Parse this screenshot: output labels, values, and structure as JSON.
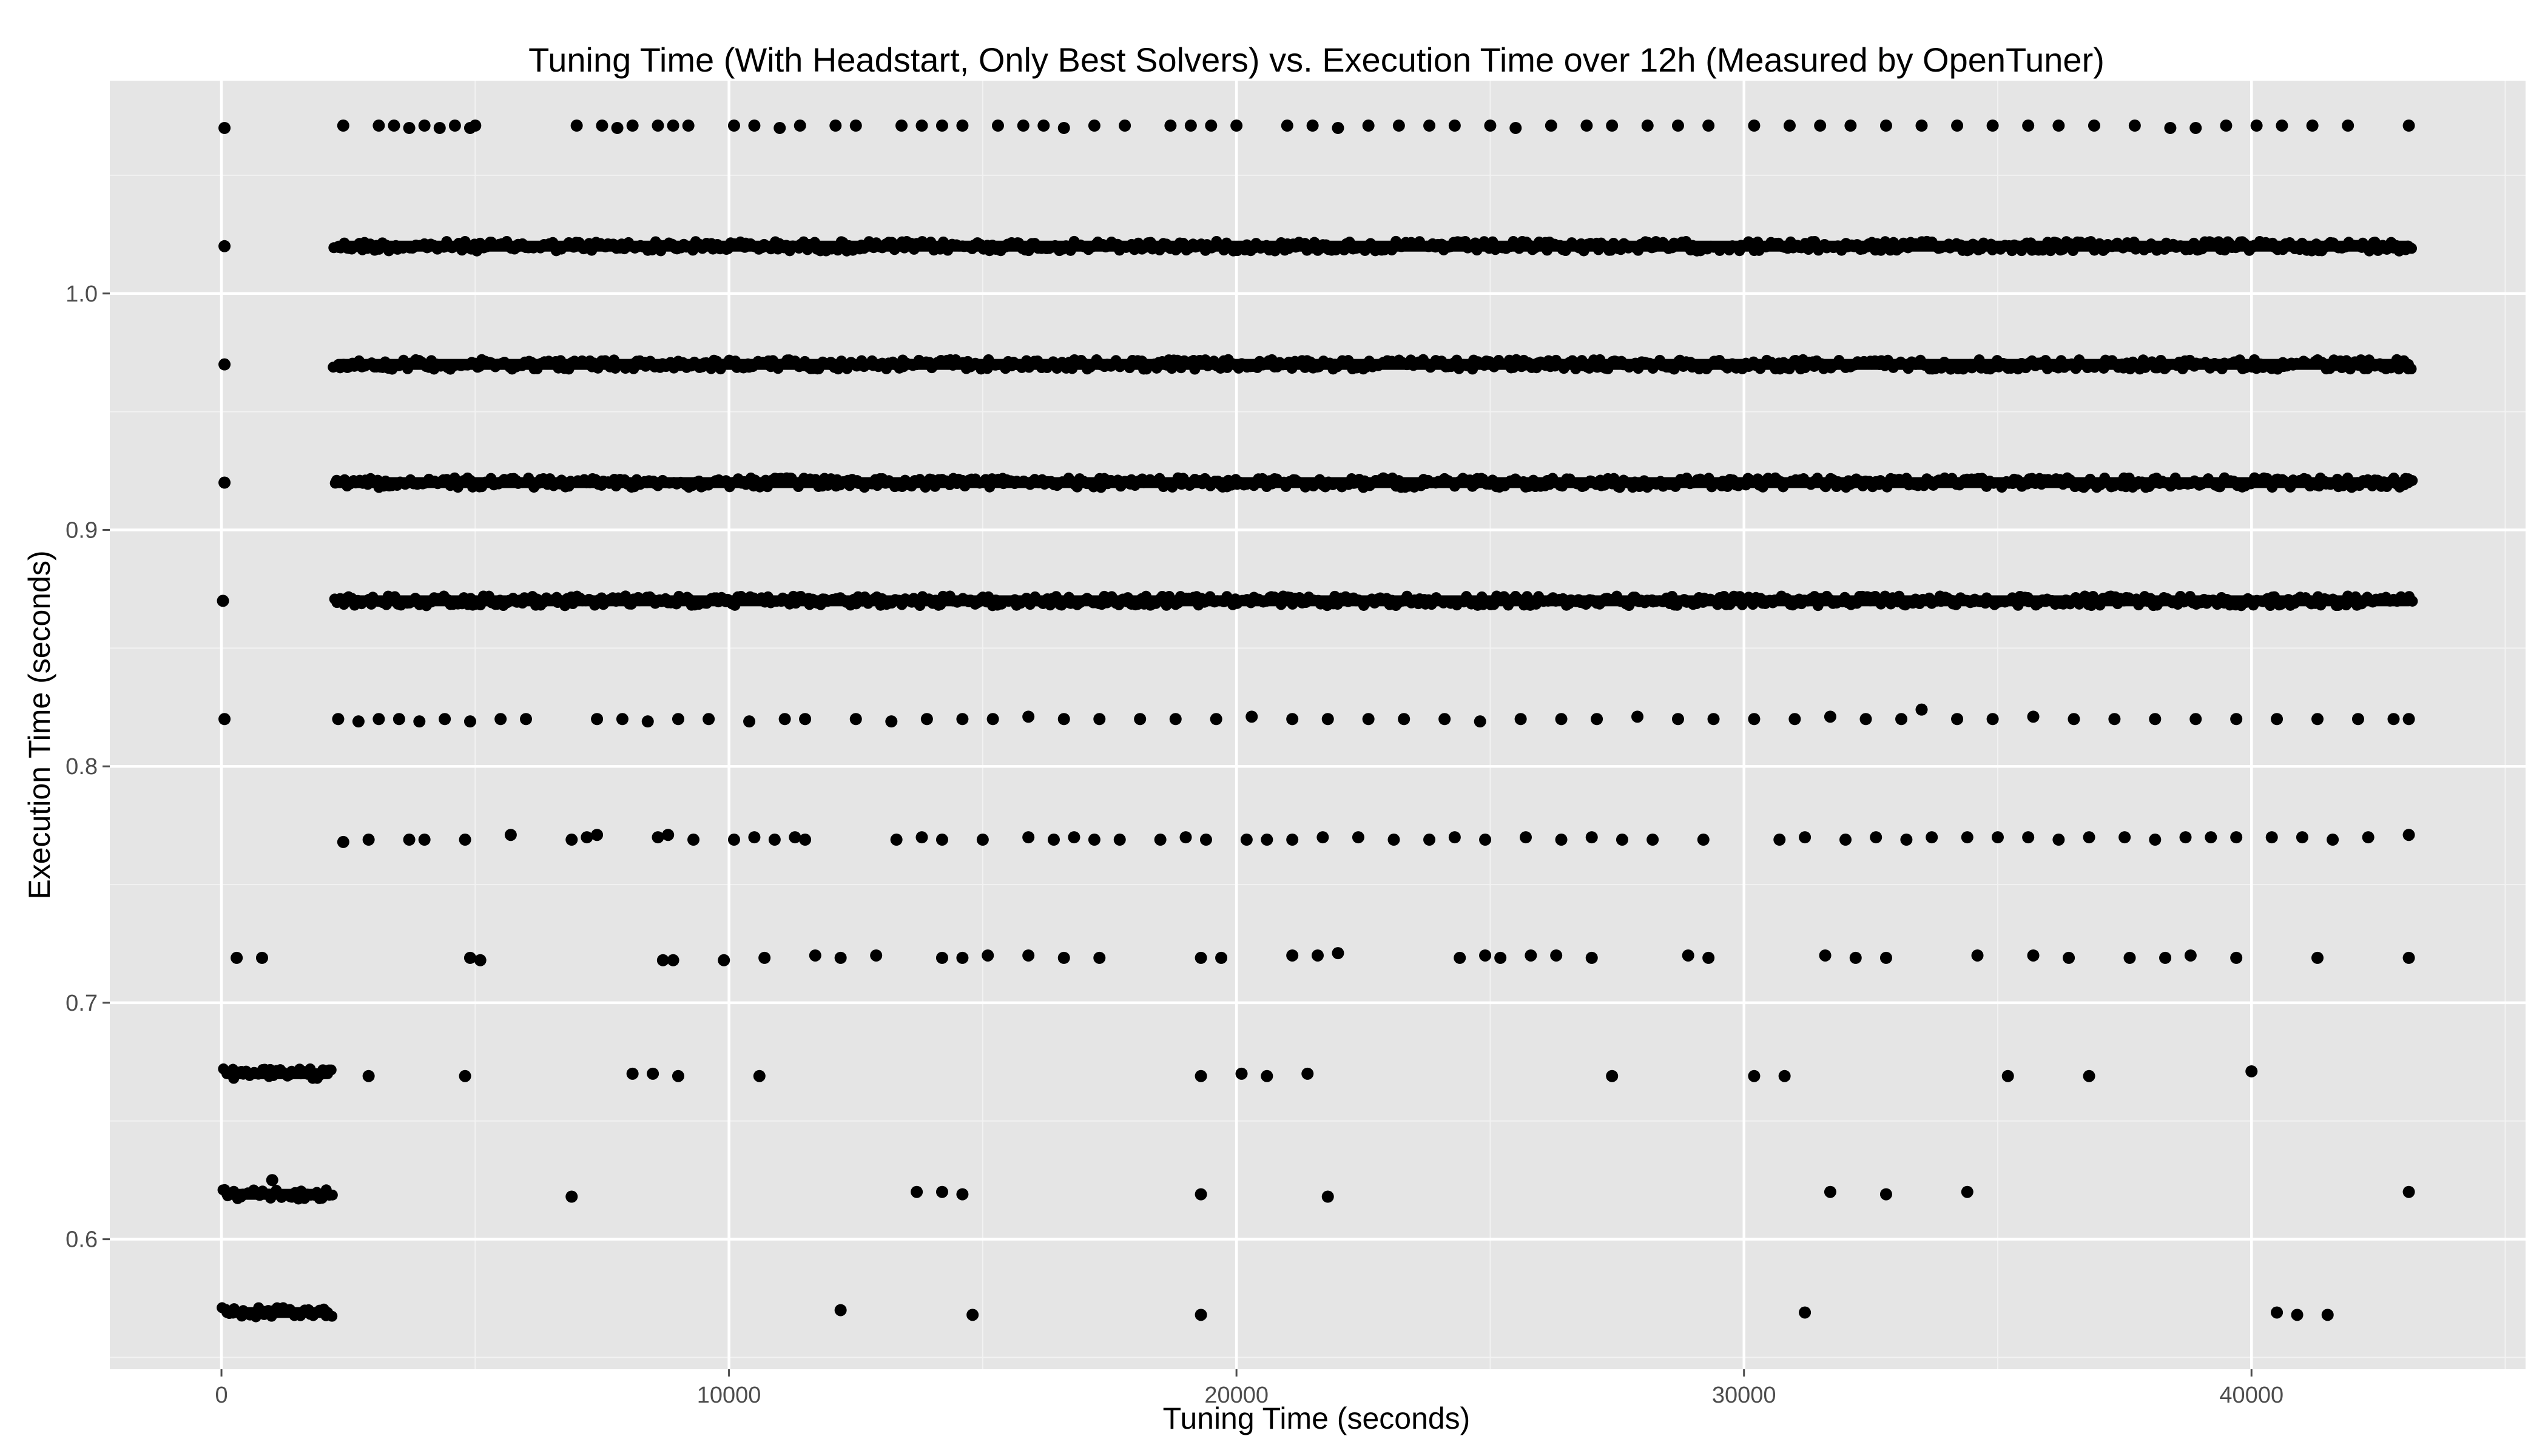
{
  "chart_data": {
    "type": "scatter",
    "title": "Tuning Time (With Headstart, Only Best Solvers) vs. Execution Time over 12h (Measured by OpenTuner)",
    "xlabel": "Tuning Time (seconds)",
    "ylabel": "Execution Time (seconds)",
    "xlim": [
      -2200,
      45400
    ],
    "ylim": [
      0.545,
      1.09
    ],
    "x_ticks": [
      0,
      10000,
      20000,
      30000,
      40000
    ],
    "x_tick_labels": [
      "0",
      "10000",
      "20000",
      "30000",
      "40000"
    ],
    "y_ticks": [
      0.6,
      0.7,
      0.8,
      0.9,
      1.0
    ],
    "y_tick_labels": [
      "0.6",
      "0.7",
      "0.8",
      "0.9",
      "1.0"
    ],
    "grid": true,
    "background": "#e5e5e5",
    "point_color": "#000000",
    "dense_bands": [
      {
        "y": 1.02,
        "x_start": 2200,
        "x_end": 43200
      },
      {
        "y": 0.97,
        "x_start": 2200,
        "x_end": 43200
      },
      {
        "y": 0.92,
        "x_start": 2200,
        "x_end": 43200
      },
      {
        "y": 0.87,
        "x_start": 2200,
        "x_end": 43200
      },
      {
        "y": 0.67,
        "x_start": 0,
        "x_end": 2200
      },
      {
        "y": 0.619,
        "x_start": 0,
        "x_end": 2200
      },
      {
        "y": 0.569,
        "x_start": 0,
        "x_end": 2200
      }
    ],
    "points": [
      {
        "x": 60,
        "y": 1.07
      },
      {
        "x": 60,
        "y": 1.02
      },
      {
        "x": 60,
        "y": 0.97
      },
      {
        "x": 60,
        "y": 0.92
      },
      {
        "x": 30,
        "y": 0.87
      },
      {
        "x": 60,
        "y": 0.82
      },
      {
        "x": 2400,
        "y": 1.071
      },
      {
        "x": 3100,
        "y": 1.071
      },
      {
        "x": 3400,
        "y": 1.071
      },
      {
        "x": 3700,
        "y": 1.07
      },
      {
        "x": 4000,
        "y": 1.071
      },
      {
        "x": 4300,
        "y": 1.07
      },
      {
        "x": 4600,
        "y": 1.071
      },
      {
        "x": 4900,
        "y": 1.07
      },
      {
        "x": 5000,
        "y": 1.071
      },
      {
        "x": 7000,
        "y": 1.071
      },
      {
        "x": 7500,
        "y": 1.071
      },
      {
        "x": 7800,
        "y": 1.07
      },
      {
        "x": 8100,
        "y": 1.071
      },
      {
        "x": 8600,
        "y": 1.071
      },
      {
        "x": 8900,
        "y": 1.071
      },
      {
        "x": 9200,
        "y": 1.071
      },
      {
        "x": 10100,
        "y": 1.071
      },
      {
        "x": 10500,
        "y": 1.071
      },
      {
        "x": 11000,
        "y": 1.07
      },
      {
        "x": 11400,
        "y": 1.071
      },
      {
        "x": 12100,
        "y": 1.071
      },
      {
        "x": 12500,
        "y": 1.071
      },
      {
        "x": 13400,
        "y": 1.071
      },
      {
        "x": 13800,
        "y": 1.071
      },
      {
        "x": 14200,
        "y": 1.071
      },
      {
        "x": 14600,
        "y": 1.071
      },
      {
        "x": 15300,
        "y": 1.071
      },
      {
        "x": 15800,
        "y": 1.071
      },
      {
        "x": 16200,
        "y": 1.071
      },
      {
        "x": 16600,
        "y": 1.07
      },
      {
        "x": 17200,
        "y": 1.071
      },
      {
        "x": 17800,
        "y": 1.071
      },
      {
        "x": 18700,
        "y": 1.071
      },
      {
        "x": 19100,
        "y": 1.071
      },
      {
        "x": 19500,
        "y": 1.071
      },
      {
        "x": 20000,
        "y": 1.071
      },
      {
        "x": 21000,
        "y": 1.071
      },
      {
        "x": 21500,
        "y": 1.071
      },
      {
        "x": 22000,
        "y": 1.07
      },
      {
        "x": 22600,
        "y": 1.071
      },
      {
        "x": 23200,
        "y": 1.071
      },
      {
        "x": 23800,
        "y": 1.071
      },
      {
        "x": 24300,
        "y": 1.071
      },
      {
        "x": 25000,
        "y": 1.071
      },
      {
        "x": 25500,
        "y": 1.07
      },
      {
        "x": 26200,
        "y": 1.071
      },
      {
        "x": 26900,
        "y": 1.071
      },
      {
        "x": 27400,
        "y": 1.071
      },
      {
        "x": 28100,
        "y": 1.071
      },
      {
        "x": 28700,
        "y": 1.071
      },
      {
        "x": 29300,
        "y": 1.071
      },
      {
        "x": 30200,
        "y": 1.071
      },
      {
        "x": 30900,
        "y": 1.071
      },
      {
        "x": 31500,
        "y": 1.071
      },
      {
        "x": 32100,
        "y": 1.071
      },
      {
        "x": 32800,
        "y": 1.071
      },
      {
        "x": 33500,
        "y": 1.071
      },
      {
        "x": 34200,
        "y": 1.071
      },
      {
        "x": 34900,
        "y": 1.071
      },
      {
        "x": 35600,
        "y": 1.071
      },
      {
        "x": 36200,
        "y": 1.071
      },
      {
        "x": 36900,
        "y": 1.071
      },
      {
        "x": 37700,
        "y": 1.071
      },
      {
        "x": 38400,
        "y": 1.07
      },
      {
        "x": 38900,
        "y": 1.07
      },
      {
        "x": 39500,
        "y": 1.071
      },
      {
        "x": 40100,
        "y": 1.071
      },
      {
        "x": 40600,
        "y": 1.071
      },
      {
        "x": 41200,
        "y": 1.071
      },
      {
        "x": 41900,
        "y": 1.071
      },
      {
        "x": 43100,
        "y": 1.071
      },
      {
        "x": 2300,
        "y": 0.82
      },
      {
        "x": 2700,
        "y": 0.819
      },
      {
        "x": 3100,
        "y": 0.82
      },
      {
        "x": 3500,
        "y": 0.82
      },
      {
        "x": 3900,
        "y": 0.819
      },
      {
        "x": 4400,
        "y": 0.82
      },
      {
        "x": 4900,
        "y": 0.819
      },
      {
        "x": 5500,
        "y": 0.82
      },
      {
        "x": 6000,
        "y": 0.82
      },
      {
        "x": 7400,
        "y": 0.82
      },
      {
        "x": 7900,
        "y": 0.82
      },
      {
        "x": 8400,
        "y": 0.819
      },
      {
        "x": 9000,
        "y": 0.82
      },
      {
        "x": 9600,
        "y": 0.82
      },
      {
        "x": 10400,
        "y": 0.819
      },
      {
        "x": 11100,
        "y": 0.82
      },
      {
        "x": 11500,
        "y": 0.82
      },
      {
        "x": 12500,
        "y": 0.82
      },
      {
        "x": 13200,
        "y": 0.819
      },
      {
        "x": 13900,
        "y": 0.82
      },
      {
        "x": 14600,
        "y": 0.82
      },
      {
        "x": 15200,
        "y": 0.82
      },
      {
        "x": 15900,
        "y": 0.821
      },
      {
        "x": 16600,
        "y": 0.82
      },
      {
        "x": 17300,
        "y": 0.82
      },
      {
        "x": 18100,
        "y": 0.82
      },
      {
        "x": 18800,
        "y": 0.82
      },
      {
        "x": 19600,
        "y": 0.82
      },
      {
        "x": 20300,
        "y": 0.821
      },
      {
        "x": 21100,
        "y": 0.82
      },
      {
        "x": 21800,
        "y": 0.82
      },
      {
        "x": 22600,
        "y": 0.82
      },
      {
        "x": 23300,
        "y": 0.82
      },
      {
        "x": 24100,
        "y": 0.82
      },
      {
        "x": 24800,
        "y": 0.819
      },
      {
        "x": 25600,
        "y": 0.82
      },
      {
        "x": 26400,
        "y": 0.82
      },
      {
        "x": 27100,
        "y": 0.82
      },
      {
        "x": 27900,
        "y": 0.821
      },
      {
        "x": 28700,
        "y": 0.82
      },
      {
        "x": 29400,
        "y": 0.82
      },
      {
        "x": 30200,
        "y": 0.82
      },
      {
        "x": 31000,
        "y": 0.82
      },
      {
        "x": 31700,
        "y": 0.821
      },
      {
        "x": 32400,
        "y": 0.82
      },
      {
        "x": 33100,
        "y": 0.82
      },
      {
        "x": 33500,
        "y": 0.824
      },
      {
        "x": 34200,
        "y": 0.82
      },
      {
        "x": 34900,
        "y": 0.82
      },
      {
        "x": 35700,
        "y": 0.821
      },
      {
        "x": 36500,
        "y": 0.82
      },
      {
        "x": 37300,
        "y": 0.82
      },
      {
        "x": 38100,
        "y": 0.82
      },
      {
        "x": 38900,
        "y": 0.82
      },
      {
        "x": 39700,
        "y": 0.82
      },
      {
        "x": 40500,
        "y": 0.82
      },
      {
        "x": 41300,
        "y": 0.82
      },
      {
        "x": 42100,
        "y": 0.82
      },
      {
        "x": 42800,
        "y": 0.82
      },
      {
        "x": 43100,
        "y": 0.82
      },
      {
        "x": 2400,
        "y": 0.768
      },
      {
        "x": 2900,
        "y": 0.769
      },
      {
        "x": 3700,
        "y": 0.769
      },
      {
        "x": 4000,
        "y": 0.769
      },
      {
        "x": 4800,
        "y": 0.769
      },
      {
        "x": 5700,
        "y": 0.771
      },
      {
        "x": 6900,
        "y": 0.769
      },
      {
        "x": 7200,
        "y": 0.77
      },
      {
        "x": 7400,
        "y": 0.771
      },
      {
        "x": 8600,
        "y": 0.77
      },
      {
        "x": 8800,
        "y": 0.771
      },
      {
        "x": 9300,
        "y": 0.769
      },
      {
        "x": 10100,
        "y": 0.769
      },
      {
        "x": 10500,
        "y": 0.77
      },
      {
        "x": 10900,
        "y": 0.769
      },
      {
        "x": 11300,
        "y": 0.77
      },
      {
        "x": 11500,
        "y": 0.769
      },
      {
        "x": 13300,
        "y": 0.769
      },
      {
        "x": 13800,
        "y": 0.77
      },
      {
        "x": 14200,
        "y": 0.769
      },
      {
        "x": 15000,
        "y": 0.769
      },
      {
        "x": 15900,
        "y": 0.77
      },
      {
        "x": 16400,
        "y": 0.769
      },
      {
        "x": 16800,
        "y": 0.77
      },
      {
        "x": 17200,
        "y": 0.769
      },
      {
        "x": 17700,
        "y": 0.769
      },
      {
        "x": 18500,
        "y": 0.769
      },
      {
        "x": 19000,
        "y": 0.77
      },
      {
        "x": 19400,
        "y": 0.769
      },
      {
        "x": 20200,
        "y": 0.769
      },
      {
        "x": 20600,
        "y": 0.769
      },
      {
        "x": 21100,
        "y": 0.769
      },
      {
        "x": 21700,
        "y": 0.77
      },
      {
        "x": 22400,
        "y": 0.77
      },
      {
        "x": 23100,
        "y": 0.769
      },
      {
        "x": 23800,
        "y": 0.769
      },
      {
        "x": 24300,
        "y": 0.77
      },
      {
        "x": 24900,
        "y": 0.769
      },
      {
        "x": 25700,
        "y": 0.77
      },
      {
        "x": 26400,
        "y": 0.769
      },
      {
        "x": 27000,
        "y": 0.77
      },
      {
        "x": 27600,
        "y": 0.769
      },
      {
        "x": 28200,
        "y": 0.769
      },
      {
        "x": 29200,
        "y": 0.769
      },
      {
        "x": 30700,
        "y": 0.769
      },
      {
        "x": 31200,
        "y": 0.77
      },
      {
        "x": 32000,
        "y": 0.769
      },
      {
        "x": 32600,
        "y": 0.77
      },
      {
        "x": 33200,
        "y": 0.769
      },
      {
        "x": 33700,
        "y": 0.77
      },
      {
        "x": 34400,
        "y": 0.77
      },
      {
        "x": 35000,
        "y": 0.77
      },
      {
        "x": 35600,
        "y": 0.77
      },
      {
        "x": 36200,
        "y": 0.769
      },
      {
        "x": 36800,
        "y": 0.77
      },
      {
        "x": 37500,
        "y": 0.77
      },
      {
        "x": 38100,
        "y": 0.769
      },
      {
        "x": 38700,
        "y": 0.77
      },
      {
        "x": 39200,
        "y": 0.77
      },
      {
        "x": 39700,
        "y": 0.77
      },
      {
        "x": 40400,
        "y": 0.77
      },
      {
        "x": 41000,
        "y": 0.77
      },
      {
        "x": 41600,
        "y": 0.769
      },
      {
        "x": 42300,
        "y": 0.77
      },
      {
        "x": 43100,
        "y": 0.771
      },
      {
        "x": 300,
        "y": 0.719
      },
      {
        "x": 800,
        "y": 0.719
      },
      {
        "x": 4900,
        "y": 0.719
      },
      {
        "x": 5100,
        "y": 0.718
      },
      {
        "x": 8700,
        "y": 0.718
      },
      {
        "x": 8900,
        "y": 0.718
      },
      {
        "x": 9900,
        "y": 0.718
      },
      {
        "x": 10700,
        "y": 0.719
      },
      {
        "x": 11700,
        "y": 0.72
      },
      {
        "x": 12200,
        "y": 0.719
      },
      {
        "x": 12900,
        "y": 0.72
      },
      {
        "x": 14200,
        "y": 0.719
      },
      {
        "x": 14600,
        "y": 0.719
      },
      {
        "x": 15100,
        "y": 0.72
      },
      {
        "x": 15900,
        "y": 0.72
      },
      {
        "x": 16600,
        "y": 0.719
      },
      {
        "x": 17300,
        "y": 0.719
      },
      {
        "x": 19300,
        "y": 0.719
      },
      {
        "x": 19700,
        "y": 0.719
      },
      {
        "x": 21100,
        "y": 0.72
      },
      {
        "x": 21600,
        "y": 0.72
      },
      {
        "x": 22000,
        "y": 0.721
      },
      {
        "x": 24400,
        "y": 0.719
      },
      {
        "x": 24900,
        "y": 0.72
      },
      {
        "x": 25200,
        "y": 0.719
      },
      {
        "x": 25800,
        "y": 0.72
      },
      {
        "x": 26300,
        "y": 0.72
      },
      {
        "x": 27000,
        "y": 0.719
      },
      {
        "x": 28900,
        "y": 0.72
      },
      {
        "x": 29300,
        "y": 0.719
      },
      {
        "x": 31600,
        "y": 0.72
      },
      {
        "x": 32200,
        "y": 0.719
      },
      {
        "x": 32800,
        "y": 0.719
      },
      {
        "x": 34600,
        "y": 0.72
      },
      {
        "x": 35700,
        "y": 0.72
      },
      {
        "x": 36400,
        "y": 0.719
      },
      {
        "x": 37600,
        "y": 0.719
      },
      {
        "x": 38300,
        "y": 0.719
      },
      {
        "x": 38800,
        "y": 0.72
      },
      {
        "x": 39700,
        "y": 0.719
      },
      {
        "x": 41300,
        "y": 0.719
      },
      {
        "x": 43100,
        "y": 0.719
      },
      {
        "x": 2900,
        "y": 0.669
      },
      {
        "x": 4800,
        "y": 0.669
      },
      {
        "x": 8100,
        "y": 0.67
      },
      {
        "x": 8500,
        "y": 0.67
      },
      {
        "x": 9000,
        "y": 0.669
      },
      {
        "x": 10600,
        "y": 0.669
      },
      {
        "x": 19300,
        "y": 0.669
      },
      {
        "x": 20100,
        "y": 0.67
      },
      {
        "x": 20600,
        "y": 0.669
      },
      {
        "x": 21400,
        "y": 0.67
      },
      {
        "x": 27400,
        "y": 0.669
      },
      {
        "x": 30200,
        "y": 0.669
      },
      {
        "x": 30800,
        "y": 0.669
      },
      {
        "x": 35200,
        "y": 0.669
      },
      {
        "x": 36800,
        "y": 0.669
      },
      {
        "x": 40000,
        "y": 0.671
      },
      {
        "x": 1000,
        "y": 0.625
      },
      {
        "x": 6900,
        "y": 0.618
      },
      {
        "x": 13700,
        "y": 0.62
      },
      {
        "x": 14200,
        "y": 0.62
      },
      {
        "x": 14600,
        "y": 0.619
      },
      {
        "x": 19300,
        "y": 0.619
      },
      {
        "x": 21800,
        "y": 0.618
      },
      {
        "x": 31700,
        "y": 0.62
      },
      {
        "x": 32800,
        "y": 0.619
      },
      {
        "x": 34400,
        "y": 0.62
      },
      {
        "x": 43100,
        "y": 0.62
      },
      {
        "x": 12200,
        "y": 0.57
      },
      {
        "x": 14800,
        "y": 0.568
      },
      {
        "x": 19300,
        "y": 0.568
      },
      {
        "x": 31200,
        "y": 0.569
      },
      {
        "x": 40500,
        "y": 0.569
      },
      {
        "x": 40900,
        "y": 0.568
      },
      {
        "x": 41500,
        "y": 0.568
      }
    ]
  }
}
